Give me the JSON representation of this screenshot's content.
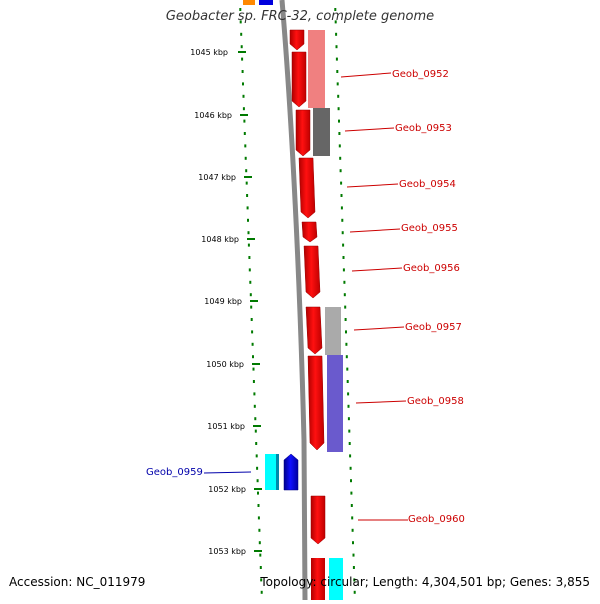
{
  "title": "Geobacter sp. FRC-32, complete genome",
  "footer": {
    "accession": "Accession: NC_011979",
    "stats": "Topology: circular; Length: 4,304,501 bp; Genes: 3,855"
  },
  "ruler": [
    "1045 kbp",
    "1046 kbp",
    "1047 kbp",
    "1048 kbp",
    "1049 kbp",
    "1050 kbp",
    "1051 kbp",
    "1052 kbp",
    "1053 kbp"
  ],
  "gene_labels": [
    {
      "name": "Geob_0952",
      "strand": "plus"
    },
    {
      "name": "Geob_0953",
      "strand": "plus"
    },
    {
      "name": "Geob_0954",
      "strand": "plus"
    },
    {
      "name": "Geob_0955",
      "strand": "plus"
    },
    {
      "name": "Geob_0956",
      "strand": "plus"
    },
    {
      "name": "Geob_0957",
      "strand": "plus"
    },
    {
      "name": "Geob_0958",
      "strand": "plus"
    },
    {
      "name": "Geob_0959",
      "strand": "minus"
    },
    {
      "name": "Geob_0960",
      "strand": "plus"
    }
  ],
  "colors": {
    "forward_cds": "#ff0000",
    "reverse_cds": "#0000ee",
    "backbone": "#888888",
    "tick": "#007a00",
    "label_plus": "#cc0000",
    "label_minus": "#0000aa"
  }
}
